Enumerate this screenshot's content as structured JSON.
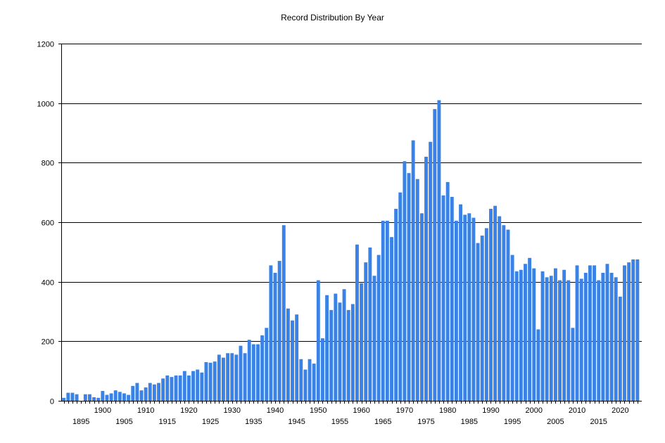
{
  "chart_data": {
    "type": "bar",
    "title": "Record Distribution By Year",
    "xlabel": "",
    "ylabel": "",
    "ylim": [
      0,
      1200
    ],
    "yticks": [
      0,
      200,
      400,
      600,
      800,
      1000,
      1200
    ],
    "xticks_top_row": [
      1900,
      1910,
      1920,
      1930,
      1940,
      1950,
      1960,
      1970,
      1980,
      1990,
      2000,
      2010,
      2020
    ],
    "xticks_bottom_row": [
      1895,
      1905,
      1915,
      1925,
      1935,
      1945,
      1955,
      1965,
      1975,
      1985,
      1995,
      2005,
      2015
    ],
    "grid": true,
    "bar_color": "#3B82E6",
    "categories": [
      1891,
      1892,
      1893,
      1894,
      1895,
      1896,
      1897,
      1898,
      1899,
      1900,
      1901,
      1902,
      1903,
      1904,
      1905,
      1906,
      1907,
      1908,
      1909,
      1910,
      1911,
      1912,
      1913,
      1914,
      1915,
      1916,
      1917,
      1918,
      1919,
      1920,
      1921,
      1922,
      1923,
      1924,
      1925,
      1926,
      1927,
      1928,
      1929,
      1930,
      1931,
      1932,
      1933,
      1934,
      1935,
      1936,
      1937,
      1938,
      1939,
      1940,
      1941,
      1942,
      1943,
      1944,
      1945,
      1946,
      1947,
      1948,
      1949,
      1950,
      1951,
      1952,
      1953,
      1954,
      1955,
      1956,
      1957,
      1958,
      1959,
      1960,
      1961,
      1962,
      1963,
      1964,
      1965,
      1966,
      1967,
      1968,
      1969,
      1970,
      1971,
      1972,
      1973,
      1974,
      1975,
      1976,
      1977,
      1978,
      1979,
      1980,
      1981,
      1982,
      1983,
      1984,
      1985,
      1986,
      1987,
      1988,
      1989,
      1990,
      1991,
      1992,
      1993,
      1994,
      1995,
      1996,
      1997,
      1998,
      1999,
      2000,
      2001,
      2002,
      2003,
      2004,
      2005,
      2006,
      2007,
      2008,
      2009,
      2010,
      2011,
      2012,
      2013,
      2014,
      2015,
      2016,
      2017,
      2018,
      2019,
      2020,
      2021,
      2022,
      2023,
      2024
    ],
    "values": [
      10,
      27,
      27,
      22,
      0,
      22,
      22,
      12,
      10,
      33,
      20,
      25,
      35,
      30,
      25,
      20,
      50,
      60,
      35,
      45,
      60,
      55,
      60,
      75,
      85,
      80,
      85,
      85,
      100,
      85,
      100,
      105,
      95,
      130,
      128,
      132,
      155,
      145,
      160,
      160,
      155,
      185,
      160,
      205,
      190,
      190,
      220,
      245,
      455,
      430,
      470,
      590,
      310,
      270,
      290,
      140,
      105,
      140,
      125,
      405,
      210,
      355,
      305,
      360,
      330,
      375,
      305,
      325,
      525,
      395,
      465,
      515,
      420,
      490,
      605,
      605,
      550,
      645,
      700,
      805,
      765,
      875,
      745,
      630,
      820,
      870,
      980,
      1010,
      690,
      735,
      685,
      605,
      660,
      625,
      630,
      615,
      530,
      555,
      580,
      645,
      655,
      620,
      590,
      575,
      490,
      435,
      440,
      460,
      480,
      445,
      240,
      435,
      415,
      420,
      445,
      405,
      440,
      405,
      245,
      455,
      410,
      430,
      455,
      455,
      405,
      430,
      460,
      430,
      415,
      350,
      455,
      465,
      475,
      475
    ]
  }
}
